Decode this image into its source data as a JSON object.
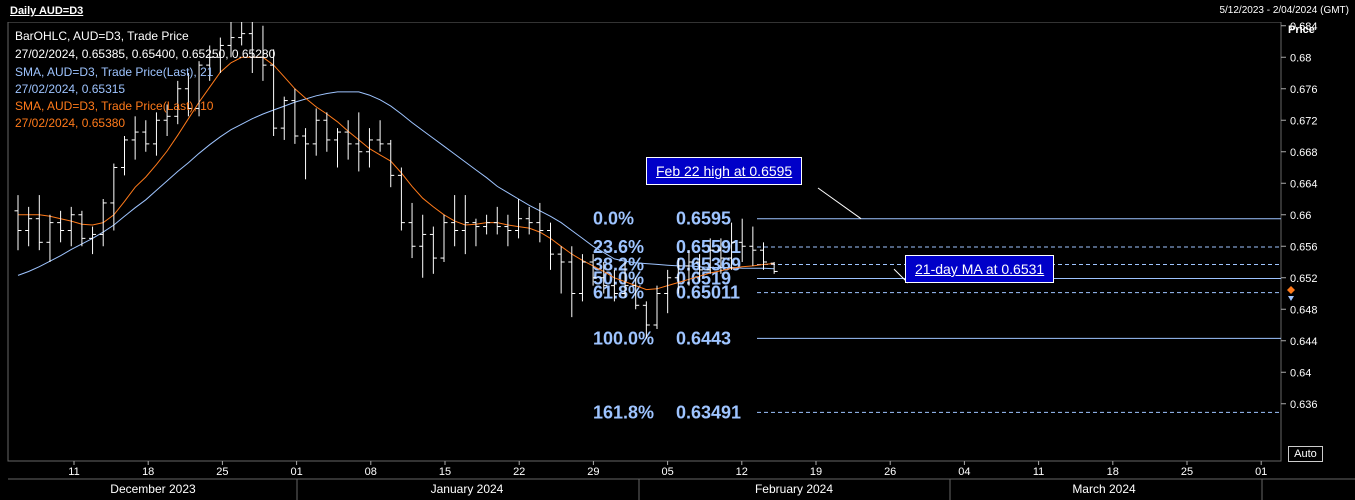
{
  "header": {
    "title": "Daily AUD=D3",
    "date_range": "5/12/2023 - 2/04/2024 (GMT)"
  },
  "legend": {
    "lines": [
      {
        "text": "BarOHLC, AUD=D3, Trade Price",
        "color": "#ffffff"
      },
      {
        "text": "27/02/2024, 0.65385, 0.65400, 0.65250, 0.65280",
        "color": "#ffffff"
      },
      {
        "text": "SMA, AUD=D3, Trade Price(Last),  21",
        "color": "#9ec4ff"
      },
      {
        "text": "27/02/2024, 0.65315",
        "color": "#9ec4ff"
      },
      {
        "text": "SMA, AUD=D3, Trade Price(Last),  10",
        "color": "#ff7a1a"
      },
      {
        "text": "27/02/2024, 0.65380",
        "color": "#ff7a1a"
      }
    ]
  },
  "annotations": {
    "feb22": "Feb 22 high at 0.6595",
    "ma21": "21-day MA at 0.6531"
  },
  "controls": {
    "auto": "Auto"
  },
  "chart_data": {
    "type": "line",
    "y_axis_title": "Price",
    "ylim": [
      0.6325,
      0.686
    ],
    "y_ticks": [
      "0.684",
      "0.68",
      "0.676",
      "0.672",
      "0.668",
      "0.664",
      "0.66",
      "0.656",
      "0.652",
      "0.648",
      "0.644",
      "0.64",
      "0.636"
    ],
    "x_tick_labels": [
      "11",
      "18",
      "25",
      "01",
      "08",
      "15",
      "22",
      "29",
      "05",
      "12",
      "19",
      "26",
      "04",
      "11",
      "18",
      "25",
      "01"
    ],
    "month_labels": [
      "December 2023",
      "January 2024",
      "February 2024",
      "March 2024"
    ],
    "colors": {
      "bars": "#ffffff",
      "sma21": "#9ec4ff",
      "sma10": "#ff7a1a",
      "fib": "#9ec4ff"
    },
    "ohlc": [
      [
        0.6605,
        0.6625,
        0.6555,
        0.658
      ],
      [
        0.658,
        0.661,
        0.656,
        0.6595
      ],
      [
        0.6595,
        0.6625,
        0.6555,
        0.6565
      ],
      [
        0.6565,
        0.66,
        0.654,
        0.659
      ],
      [
        0.659,
        0.6605,
        0.6565,
        0.658
      ],
      [
        0.658,
        0.661,
        0.656,
        0.66
      ],
      [
        0.66,
        0.6605,
        0.656,
        0.657
      ],
      [
        0.657,
        0.6585,
        0.655,
        0.6575
      ],
      [
        0.6575,
        0.662,
        0.656,
        0.6615
      ],
      [
        0.6615,
        0.6665,
        0.658,
        0.666
      ],
      [
        0.666,
        0.67,
        0.665,
        0.6695
      ],
      [
        0.6695,
        0.6725,
        0.667,
        0.6705
      ],
      [
        0.6705,
        0.672,
        0.668,
        0.669
      ],
      [
        0.669,
        0.673,
        0.6675,
        0.672
      ],
      [
        0.672,
        0.674,
        0.67,
        0.6725
      ],
      [
        0.6725,
        0.677,
        0.6715,
        0.676
      ],
      [
        0.676,
        0.678,
        0.6725,
        0.6735
      ],
      [
        0.6735,
        0.6795,
        0.6725,
        0.679
      ],
      [
        0.679,
        0.6815,
        0.677,
        0.68
      ],
      [
        0.68,
        0.6825,
        0.678,
        0.6815
      ],
      [
        0.6815,
        0.6845,
        0.68,
        0.6825
      ],
      [
        0.6825,
        0.687,
        0.6815,
        0.683
      ],
      [
        0.683,
        0.685,
        0.678,
        0.68
      ],
      [
        0.68,
        0.684,
        0.677,
        0.679
      ],
      [
        0.679,
        0.681,
        0.67,
        0.671
      ],
      [
        0.671,
        0.675,
        0.6695,
        0.6745
      ],
      [
        0.6745,
        0.676,
        0.669,
        0.67
      ],
      [
        0.67,
        0.671,
        0.6645,
        0.669
      ],
      [
        0.669,
        0.6735,
        0.6675,
        0.672
      ],
      [
        0.672,
        0.673,
        0.668,
        0.6695
      ],
      [
        0.6695,
        0.671,
        0.666,
        0.6705
      ],
      [
        0.6705,
        0.672,
        0.667,
        0.669
      ],
      [
        0.669,
        0.673,
        0.6655,
        0.668
      ],
      [
        0.668,
        0.671,
        0.666,
        0.6695
      ],
      [
        0.6695,
        0.672,
        0.668,
        0.669
      ],
      [
        0.669,
        0.6695,
        0.6635,
        0.665
      ],
      [
        0.665,
        0.666,
        0.658,
        0.659
      ],
      [
        0.659,
        0.6615,
        0.6545,
        0.656
      ],
      [
        0.656,
        0.66,
        0.652,
        0.6575
      ],
      [
        0.6575,
        0.6585,
        0.6525,
        0.6545
      ],
      [
        0.6545,
        0.66,
        0.654,
        0.659
      ],
      [
        0.659,
        0.6625,
        0.656,
        0.658
      ],
      [
        0.658,
        0.6625,
        0.655,
        0.659
      ],
      [
        0.659,
        0.6595,
        0.656,
        0.6585
      ],
      [
        0.6585,
        0.66,
        0.6575,
        0.659
      ],
      [
        0.659,
        0.661,
        0.6575,
        0.6585
      ],
      [
        0.6585,
        0.66,
        0.656,
        0.658
      ],
      [
        0.658,
        0.662,
        0.657,
        0.6595
      ],
      [
        0.6595,
        0.661,
        0.6575,
        0.659
      ],
      [
        0.659,
        0.6615,
        0.6565,
        0.658
      ],
      [
        0.658,
        0.659,
        0.653,
        0.655
      ],
      [
        0.655,
        0.656,
        0.65,
        0.654
      ],
      [
        0.654,
        0.656,
        0.647,
        0.65
      ],
      [
        0.65,
        0.655,
        0.649,
        0.654
      ],
      [
        0.654,
        0.655,
        0.651,
        0.652
      ],
      [
        0.652,
        0.654,
        0.65,
        0.651
      ],
      [
        0.651,
        0.653,
        0.649,
        0.65
      ],
      [
        0.65,
        0.654,
        0.6495,
        0.651
      ],
      [
        0.651,
        0.652,
        0.648,
        0.6485
      ],
      [
        0.6485,
        0.649,
        0.6443,
        0.646
      ],
      [
        0.646,
        0.651,
        0.6455,
        0.65
      ],
      [
        0.65,
        0.653,
        0.6475,
        0.652
      ],
      [
        0.652,
        0.6545,
        0.65,
        0.6535
      ],
      [
        0.6535,
        0.6555,
        0.651,
        0.654
      ],
      [
        0.654,
        0.655,
        0.6515,
        0.653
      ],
      [
        0.653,
        0.657,
        0.6525,
        0.6555
      ],
      [
        0.6555,
        0.657,
        0.6525,
        0.6545
      ],
      [
        0.6545,
        0.659,
        0.653,
        0.6565
      ],
      [
        0.6565,
        0.6595,
        0.654,
        0.656
      ],
      [
        0.656,
        0.6585,
        0.6535,
        0.6555
      ],
      [
        0.6555,
        0.6565,
        0.653,
        0.654
      ],
      [
        0.65385,
        0.654,
        0.6525,
        0.6528
      ]
    ],
    "sma21": [
      0.6523,
      0.6528,
      0.6534,
      0.6541,
      0.6548,
      0.6556,
      0.6563,
      0.657,
      0.6578,
      0.6587,
      0.6598,
      0.6609,
      0.6619,
      0.6631,
      0.6643,
      0.6655,
      0.6666,
      0.6678,
      0.6689,
      0.6699,
      0.6708,
      0.6715,
      0.6722,
      0.6728,
      0.6733,
      0.6738,
      0.6743,
      0.6747,
      0.6751,
      0.6754,
      0.6756,
      0.6756,
      0.6756,
      0.6752,
      0.6746,
      0.6738,
      0.6728,
      0.6717,
      0.6707,
      0.6697,
      0.6687,
      0.6677,
      0.6667,
      0.6657,
      0.6647,
      0.6636,
      0.6628,
      0.662,
      0.6612,
      0.6605,
      0.6598,
      0.659,
      0.658,
      0.657,
      0.656,
      0.6552,
      0.6544,
      0.6541,
      0.6539,
      0.6538,
      0.6537,
      0.6536,
      0.6535,
      0.6535,
      0.6534,
      0.6533,
      0.6533,
      0.6533,
      0.6532,
      0.6532,
      0.6532,
      0.65315
    ],
    "sma10": [
      0.66,
      0.66,
      0.66,
      0.6598,
      0.6595,
      0.6592,
      0.6588,
      0.6587,
      0.659,
      0.66,
      0.6617,
      0.6635,
      0.6648,
      0.6664,
      0.6681,
      0.6701,
      0.6722,
      0.6743,
      0.6762,
      0.6781,
      0.6793,
      0.68,
      0.68,
      0.68,
      0.679,
      0.6775,
      0.676,
      0.6748,
      0.6737,
      0.6728,
      0.6718,
      0.6706,
      0.6695,
      0.6684,
      0.6676,
      0.6668,
      0.6653,
      0.6636,
      0.6621,
      0.661,
      0.66,
      0.6592,
      0.6587,
      0.6588,
      0.659,
      0.659,
      0.6587,
      0.6585,
      0.6583,
      0.6578,
      0.657,
      0.656,
      0.655,
      0.6542,
      0.6535,
      0.6528,
      0.652,
      0.6515,
      0.651,
      0.6505,
      0.6506,
      0.651,
      0.6514,
      0.6518,
      0.6522,
      0.6526,
      0.6529,
      0.6532,
      0.6534,
      0.6535,
      0.6537,
      0.6538
    ],
    "fibonacci": [
      {
        "pct": "0.0%",
        "value": 0.6595,
        "label": "0.6595"
      },
      {
        "pct": "23.6%",
        "value": 0.65591,
        "label": "0.65591"
      },
      {
        "pct": "38.2%",
        "value": 0.65369,
        "label": "0.65369"
      },
      {
        "pct": "50.0%",
        "value": 0.6519,
        "label": "0.6519"
      },
      {
        "pct": "61.8%",
        "value": 0.65011,
        "label": "0.65011"
      },
      {
        "pct": "100.0%",
        "value": 0.6443,
        "label": "0.6443"
      },
      {
        "pct": "161.8%",
        "value": 0.63491,
        "label": "0.63491"
      }
    ]
  }
}
